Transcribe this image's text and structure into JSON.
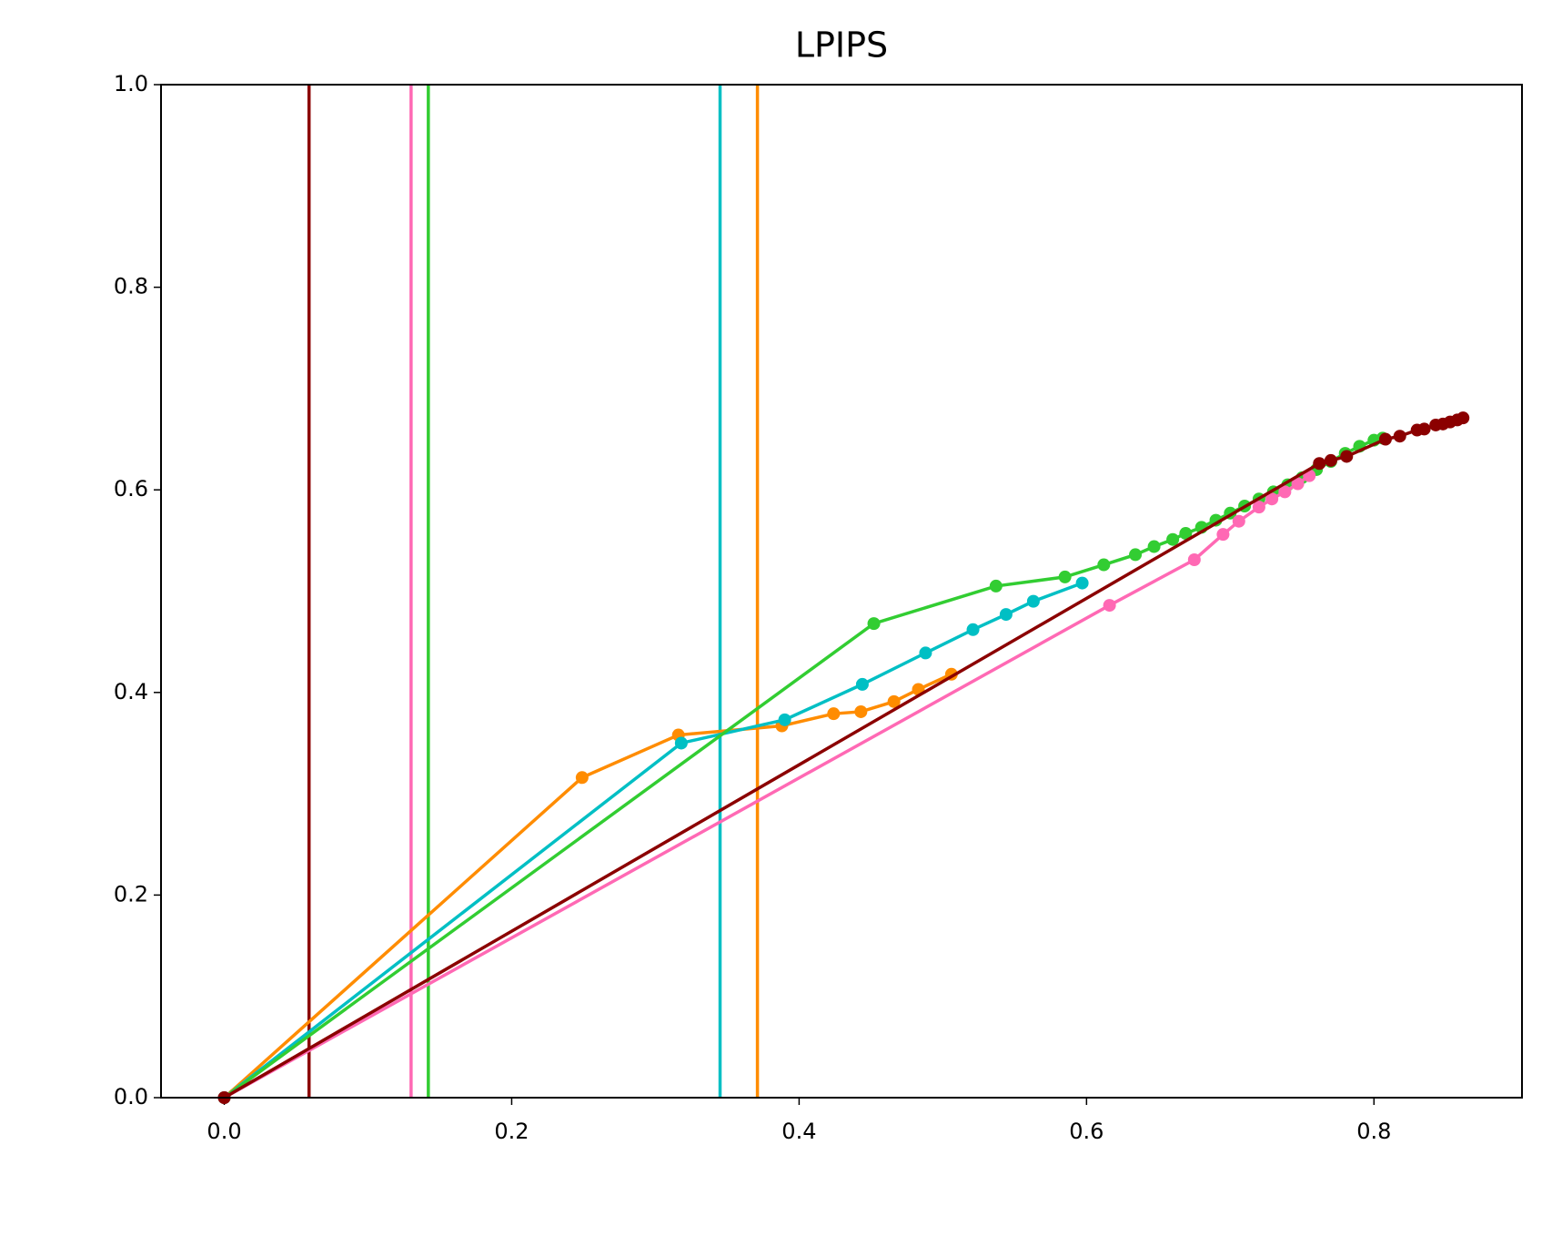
{
  "chart_data": {
    "type": "line",
    "title": "LPIPS",
    "xlim": [
      -0.044,
      0.903
    ],
    "ylim": [
      0,
      1
    ],
    "xticks": [
      {
        "value": 0,
        "label": "0.0"
      },
      {
        "value": 0.2,
        "label": "0.2"
      },
      {
        "value": 0.4,
        "label": "0.4"
      },
      {
        "value": 0.6,
        "label": "0.6"
      },
      {
        "value": 0.8,
        "label": "0.8"
      }
    ],
    "yticks": [
      {
        "value": 0,
        "label": "0.0"
      },
      {
        "value": 0.2,
        "label": "0.2"
      },
      {
        "value": 0.4,
        "label": "0.4"
      },
      {
        "value": 0.6,
        "label": "0.6"
      },
      {
        "value": 0.8,
        "label": "0.8"
      },
      {
        "value": 1,
        "label": "1.0"
      }
    ],
    "grid": false,
    "vlines": [
      {
        "x": 0.059,
        "color": "#8b0000"
      },
      {
        "x": 0.13,
        "color": "#ff69b4"
      },
      {
        "x": 0.142,
        "color": "#32cd32"
      },
      {
        "x": 0.345,
        "color": "#00bfc4"
      },
      {
        "x": 0.371,
        "color": "#ff8c00"
      }
    ],
    "series": [
      {
        "color": "#ff8c00",
        "x": [
          0,
          0.249,
          0.316,
          0.388,
          0.424,
          0.443,
          0.466,
          0.483,
          0.506
        ],
        "values": [
          0,
          0.316,
          0.358,
          0.367,
          0.379,
          0.381,
          0.391,
          0.403,
          0.418
        ]
      },
      {
        "color": "#00bfc4",
        "x": [
          0,
          0.318,
          0.39,
          0.444,
          0.488,
          0.521,
          0.544,
          0.563,
          0.597
        ],
        "values": [
          0,
          0.35,
          0.373,
          0.408,
          0.439,
          0.462,
          0.477,
          0.49,
          0.508
        ]
      },
      {
        "color": "#32cd32",
        "x": [
          0,
          0.452,
          0.537,
          0.585,
          0.612,
          0.634,
          0.647,
          0.66,
          0.669,
          0.68,
          0.69,
          0.7,
          0.71,
          0.72,
          0.73,
          0.74,
          0.75,
          0.76,
          0.77,
          0.78,
          0.79,
          0.8,
          0.806
        ],
        "values": [
          0,
          0.468,
          0.505,
          0.514,
          0.526,
          0.536,
          0.544,
          0.551,
          0.557,
          0.563,
          0.57,
          0.577,
          0.584,
          0.591,
          0.598,
          0.605,
          0.612,
          0.62,
          0.628,
          0.636,
          0.643,
          0.649,
          0.651
        ]
      },
      {
        "color": "#ff69b4",
        "x": [
          0,
          0.616,
          0.675,
          0.695,
          0.706,
          0.72,
          0.729,
          0.738,
          0.747,
          0.755
        ],
        "values": [
          0,
          0.486,
          0.531,
          0.556,
          0.569,
          0.583,
          0.591,
          0.598,
          0.606,
          0.614
        ]
      },
      {
        "color": "#8b0000",
        "x": [
          0,
          0.762,
          0.77,
          0.781,
          0.808,
          0.818,
          0.83,
          0.835,
          0.843,
          0.848,
          0.853,
          0.858,
          0.862
        ],
        "values": [
          0,
          0.626,
          0.629,
          0.633,
          0.65,
          0.653,
          0.659,
          0.66,
          0.664,
          0.665,
          0.667,
          0.669,
          0.671
        ]
      }
    ]
  }
}
